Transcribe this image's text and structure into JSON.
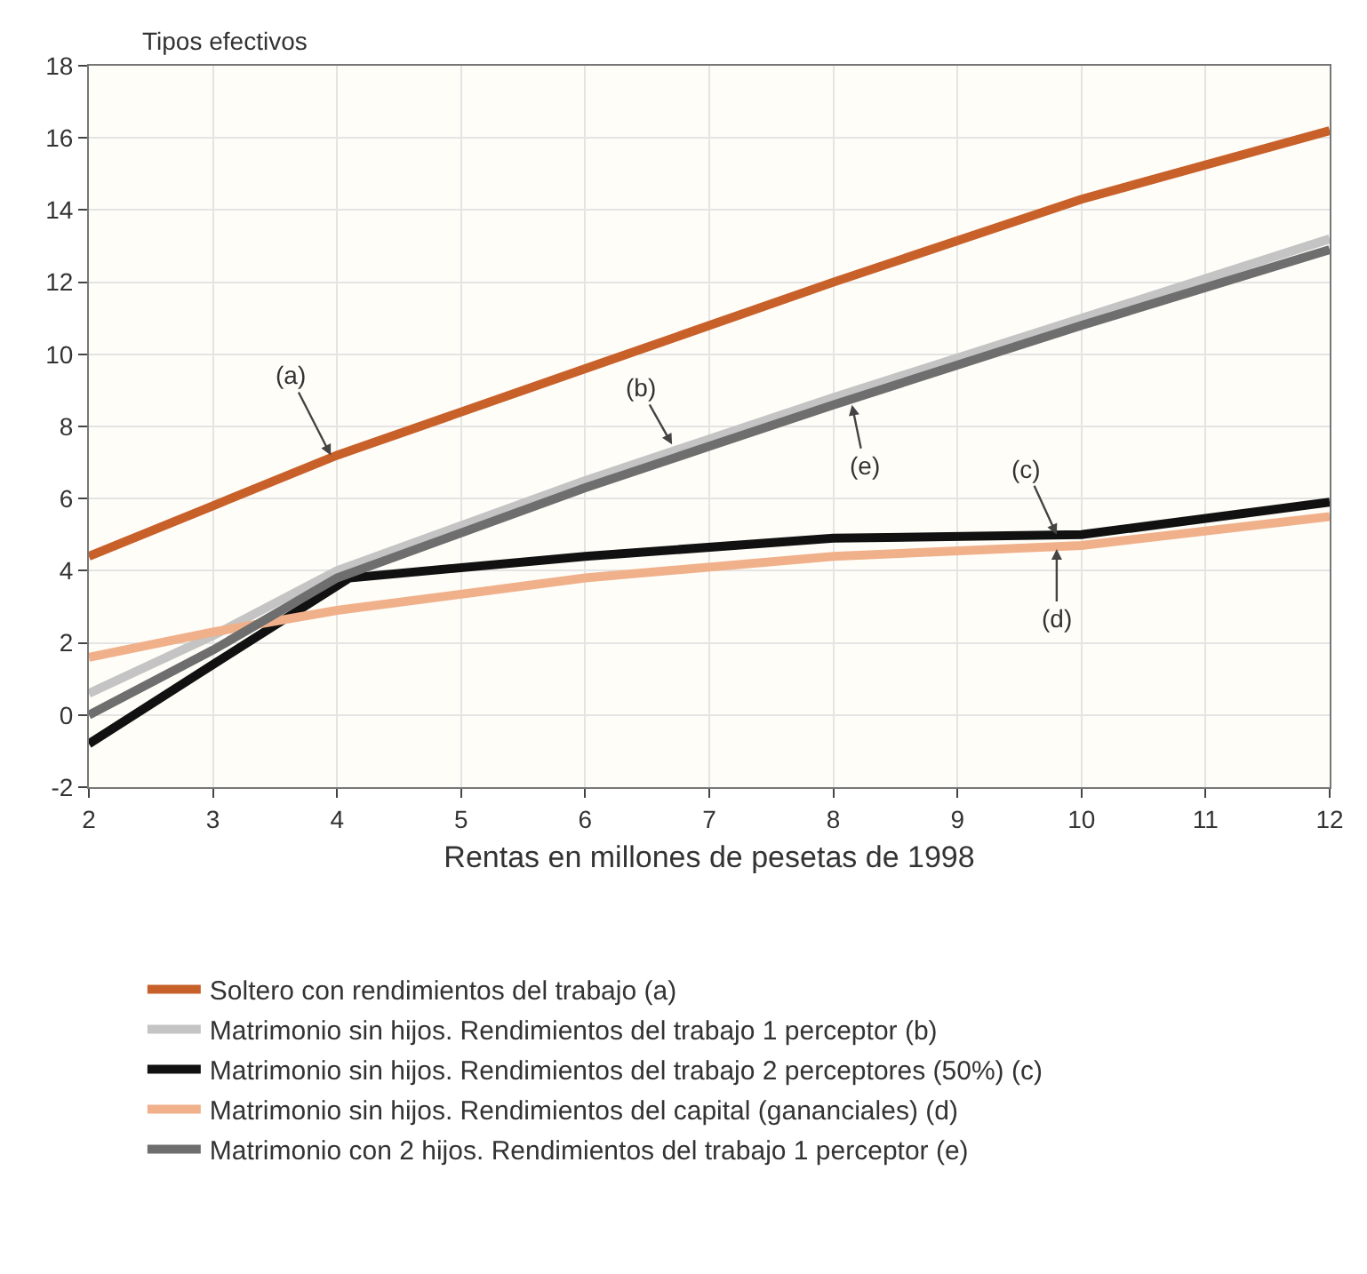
{
  "chart_data": {
    "type": "line",
    "ylabel": "Tipos efectivos",
    "xlabel": "Rentas en millones de pesetas de 1998",
    "x": [
      2,
      3,
      4,
      6,
      8,
      10,
      12
    ],
    "series": [
      {
        "name": "Soltero con rendimientos del trabajo (a)",
        "color": "#c8602a",
        "values": [
          4.4,
          5.8,
          7.2,
          9.6,
          12.0,
          14.3,
          16.2
        ]
      },
      {
        "name": "Matrimonio sin hijos. Rendimientos del trabajo 1 perceptor (b)",
        "color": "#c4c4c4",
        "values": [
          0.6,
          2.2,
          4.0,
          6.5,
          8.8,
          11.0,
          13.2
        ]
      },
      {
        "name": "Matrimonio sin hijos. Rendimientos del trabajo 2 perceptores (50%) (c)",
        "color": "#111111",
        "x": [
          2,
          3,
          4.1,
          6,
          8,
          10,
          12
        ],
        "values": [
          -0.8,
          1.4,
          3.8,
          4.4,
          4.9,
          5.0,
          5.9
        ]
      },
      {
        "name": "Matrimonio sin hijos. Rendimientos del capital (gananciales) (d)",
        "color": "#f0b08a",
        "values": [
          1.6,
          2.3,
          2.9,
          3.8,
          4.4,
          4.7,
          5.5
        ]
      },
      {
        "name": "Matrimonio con 2 hijos. Rendimientos del trabajo 1 perceptor (e)",
        "color": "#6e6e6e",
        "values": [
          0.0,
          1.8,
          3.8,
          6.3,
          8.6,
          10.8,
          12.9
        ]
      }
    ],
    "annotations": [
      {
        "text": "(a)",
        "x": 3.95,
        "y": 7.2
      },
      {
        "text": "(b)",
        "x": 6.7,
        "y": 7.5
      },
      {
        "text": "(e)",
        "x": 8.15,
        "y": 8.6
      },
      {
        "text": "(c)",
        "x": 9.8,
        "y": 5.0
      },
      {
        "text": "(d)",
        "x": 9.8,
        "y": 4.6
      }
    ],
    "xlim": [
      2,
      12
    ],
    "xticks": [
      2,
      3,
      4,
      5,
      6,
      7,
      8,
      9,
      10,
      11,
      12
    ],
    "ylim": [
      -2,
      18
    ],
    "yticks": [
      -2,
      0,
      2,
      4,
      6,
      8,
      10,
      12,
      14,
      16,
      18
    ],
    "grid": true,
    "legend": "bottom",
    "marker": "none",
    "line_style": "solid"
  }
}
